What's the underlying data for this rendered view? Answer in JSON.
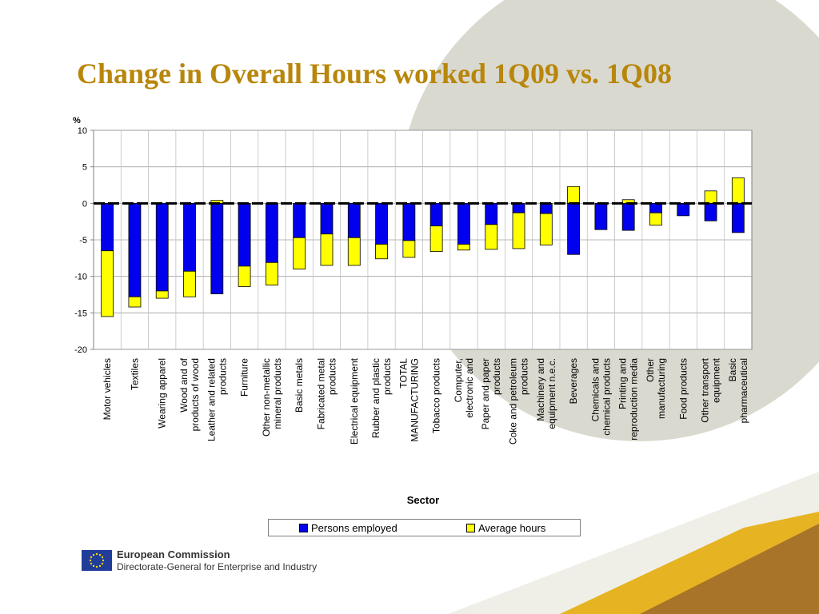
{
  "slide": {
    "title": "Change in Overall Hours worked 1Q09 vs. 1Q08",
    "footer": {
      "org": "European Commission",
      "dg": "Directorate-General for Enterprise and Industry"
    }
  },
  "colors": {
    "title": "#b8860b",
    "persons_employed": "#0000ee",
    "average_hours": "#ffff00",
    "circle": "#d9d9d0",
    "gold": "#e6b422",
    "brown": "#a8742a"
  },
  "chart_data": {
    "type": "bar",
    "stacked": true,
    "title": "",
    "ylabel": "%",
    "xlabel": "Sector",
    "ylim": [
      -20,
      10
    ],
    "yticks": [
      10,
      5,
      0,
      -5,
      -10,
      -15,
      -20
    ],
    "grid": true,
    "legend": "bottom",
    "categories": [
      "Motor vehicles",
      "Textiles",
      "Wearing apparel",
      "Wood and of products of wood",
      "Leather and related products",
      "Furniture",
      "Other non-metallic mineral products",
      "Basic metals",
      "Fabricated metal products",
      "Electrical equipment",
      "Rubber and plastic products",
      "TOTAL MANUFACTURING",
      "Tobacco products",
      "Computer, electronic and",
      "Paper and paper products",
      "Coke and petroleum products",
      "Machinery and equipment n.e.c.",
      "Beverages",
      "Chemicals and chemical products",
      "Printing and reproduction media",
      "Other manufacturing",
      "Food products",
      "Other transport equipment",
      "Basic pharmaceutical"
    ],
    "category_lines": [
      [
        "Motor vehicles"
      ],
      [
        "Textiles"
      ],
      [
        "Wearing apparel"
      ],
      [
        "Wood and of",
        "products of wood"
      ],
      [
        "Leather and related",
        "products"
      ],
      [
        "Furniture"
      ],
      [
        "Other non-metallic",
        "mineral products"
      ],
      [
        "Basic metals"
      ],
      [
        "Fabricated metal",
        "products"
      ],
      [
        "Electrical equipment"
      ],
      [
        "Rubber and plastic",
        "products"
      ],
      [
        "TOTAL",
        "MANUFACTURING"
      ],
      [
        "Tobacco products"
      ],
      [
        "Computer,",
        "electronic and"
      ],
      [
        "Paper and paper",
        "products"
      ],
      [
        "Coke and petroleum",
        "products"
      ],
      [
        "Machinery and",
        "equipment n.e.c."
      ],
      [
        "Beverages"
      ],
      [
        "Chemicals and",
        "chemical products"
      ],
      [
        "Printing and",
        "reproduction media"
      ],
      [
        "Other",
        "manufacturing"
      ],
      [
        "Food products"
      ],
      [
        "Other transport",
        "equipment"
      ],
      [
        "Basic",
        "pharmaceutical"
      ]
    ],
    "series": [
      {
        "name": "Persons employed",
        "values": [
          -6.5,
          -12.8,
          -12.0,
          -9.3,
          -12.4,
          -8.6,
          -8.1,
          -4.7,
          -4.2,
          -4.7,
          -5.6,
          -5.1,
          -3.1,
          -5.6,
          -2.9,
          -1.3,
          -1.4,
          -7.0,
          -3.6,
          -3.7,
          -1.3,
          -1.7,
          -2.4,
          -4.0
        ]
      },
      {
        "name": "Average hours",
        "values": [
          -9.0,
          -1.4,
          -1.0,
          -3.5,
          0.4,
          -2.8,
          -3.1,
          -4.3,
          -4.3,
          -3.8,
          -2.0,
          -2.3,
          -3.5,
          -0.8,
          -3.4,
          -4.9,
          -4.3,
          2.3,
          0,
          0.5,
          -1.7,
          0,
          1.7,
          3.5
        ]
      }
    ]
  }
}
